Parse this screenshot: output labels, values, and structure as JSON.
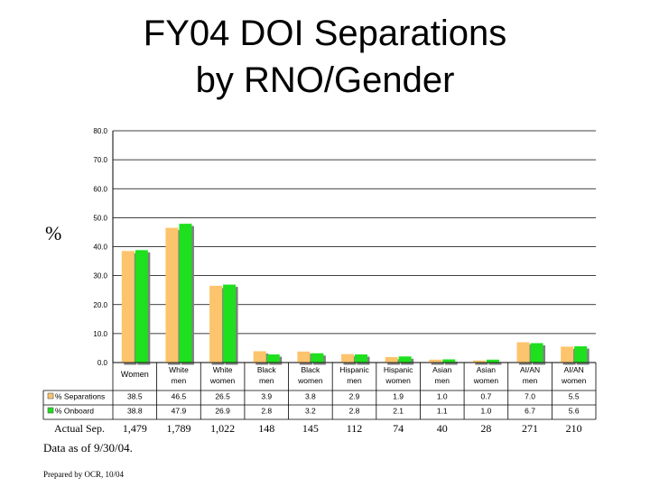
{
  "title_line1": "FY04 DOI Separations",
  "title_line2": "by RNO/Gender",
  "y_unit": "%",
  "chart_data": {
    "type": "bar",
    "categories": [
      [
        "Women"
      ],
      [
        "White",
        "men"
      ],
      [
        "White",
        "women"
      ],
      [
        "Black",
        "men"
      ],
      [
        "Black",
        "women"
      ],
      [
        "Hispanic",
        "men"
      ],
      [
        "Hispanic",
        "women"
      ],
      [
        "Asian",
        "men"
      ],
      [
        "Asian",
        "women"
      ],
      [
        "AI/AN",
        "men"
      ],
      [
        "AI/AN",
        "women"
      ]
    ],
    "series": [
      {
        "name": "% Separations",
        "color": "#fcc46c",
        "values": [
          38.5,
          46.5,
          26.5,
          3.9,
          3.8,
          2.9,
          1.9,
          1.0,
          0.7,
          7.0,
          5.5
        ]
      },
      {
        "name": "% Onboard",
        "color": "#1ee01e",
        "values": [
          38.8,
          47.9,
          26.9,
          2.8,
          3.2,
          2.8,
          2.1,
          1.1,
          1.0,
          6.7,
          5.6
        ]
      }
    ],
    "value_labels": [
      [
        "38.5",
        "46.5",
        "26.5",
        "3.9",
        "3.8",
        "2.9",
        "1.9",
        "1.0",
        "0.7",
        "7.0",
        "5.5"
      ],
      [
        "38.8",
        "47.9",
        "26.9",
        "2.8",
        "3.2",
        "2.8",
        "2.1",
        "1.1",
        "1.0",
        "6.7",
        "5.6"
      ]
    ],
    "ylim": [
      0,
      80
    ],
    "yticks": [
      "0.0",
      "10.0",
      "20.0",
      "30.0",
      "40.0",
      "50.0",
      "60.0",
      "70.0",
      "80.0"
    ],
    "grid": true,
    "legend": "data table"
  },
  "actual_sep": {
    "label": "Actual Sep.",
    "values": [
      "1,479",
      "1,789",
      "1,022",
      "148",
      "145",
      "112",
      "74",
      "40",
      "28",
      "271",
      "210"
    ]
  },
  "footnote_asof": "Data as of 9/30/04.",
  "footnote_prepared": "Prepared by OCR, 10/04"
}
